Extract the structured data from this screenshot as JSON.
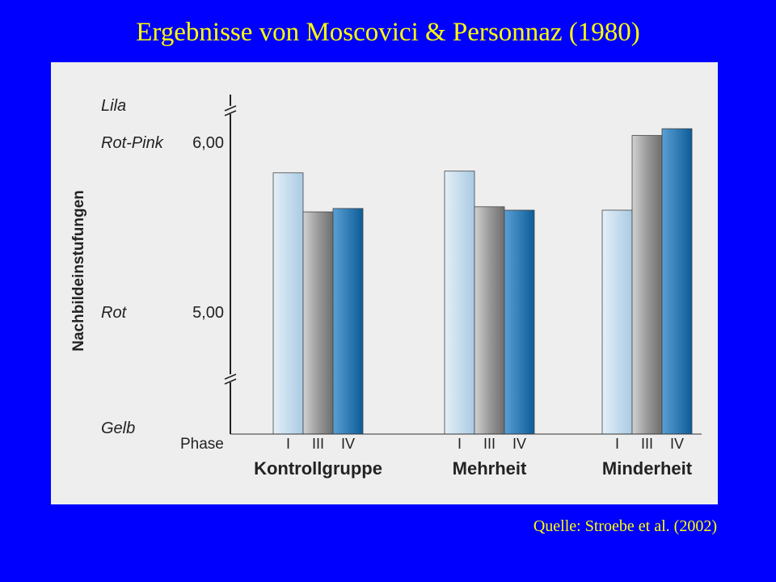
{
  "slide": {
    "title": "Ergebnisse von Moscovici & Personnaz (1980)",
    "source": "Quelle: Stroebe et al. (2002)"
  },
  "colors": {
    "background": "#0000ff",
    "title": "#ffff00",
    "phase_I": "#cde0ee",
    "phase_III": "#8c8c8c",
    "phase_IV": "#1a72b0"
  },
  "chart_data": {
    "type": "bar",
    "ylabel": "Nachbildeinstufungen",
    "color_labels": [
      {
        "label": "Lila",
        "y": 6.7
      },
      {
        "label": "Rot-Pink",
        "y": 6.0
      },
      {
        "label": "Rot",
        "y": 5.0
      },
      {
        "label": "Gelb",
        "y": 4.4
      }
    ],
    "ticks": [
      {
        "label": "6,00",
        "y": 6.0
      },
      {
        "label": "5,00",
        "y": 5.0
      }
    ],
    "ylim": [
      4.45,
      6.6
    ],
    "axis_breaks": true,
    "phase_label": "Phase",
    "phases": [
      "I",
      "III",
      "IV"
    ],
    "groups": [
      {
        "name": "Kontrollgruppe",
        "values": [
          5.82,
          5.59,
          5.61
        ]
      },
      {
        "name": "Mehrheit",
        "values": [
          5.83,
          5.62,
          5.6
        ]
      },
      {
        "name": "Minderheit",
        "values": [
          5.6,
          6.04,
          6.08
        ]
      }
    ]
  }
}
